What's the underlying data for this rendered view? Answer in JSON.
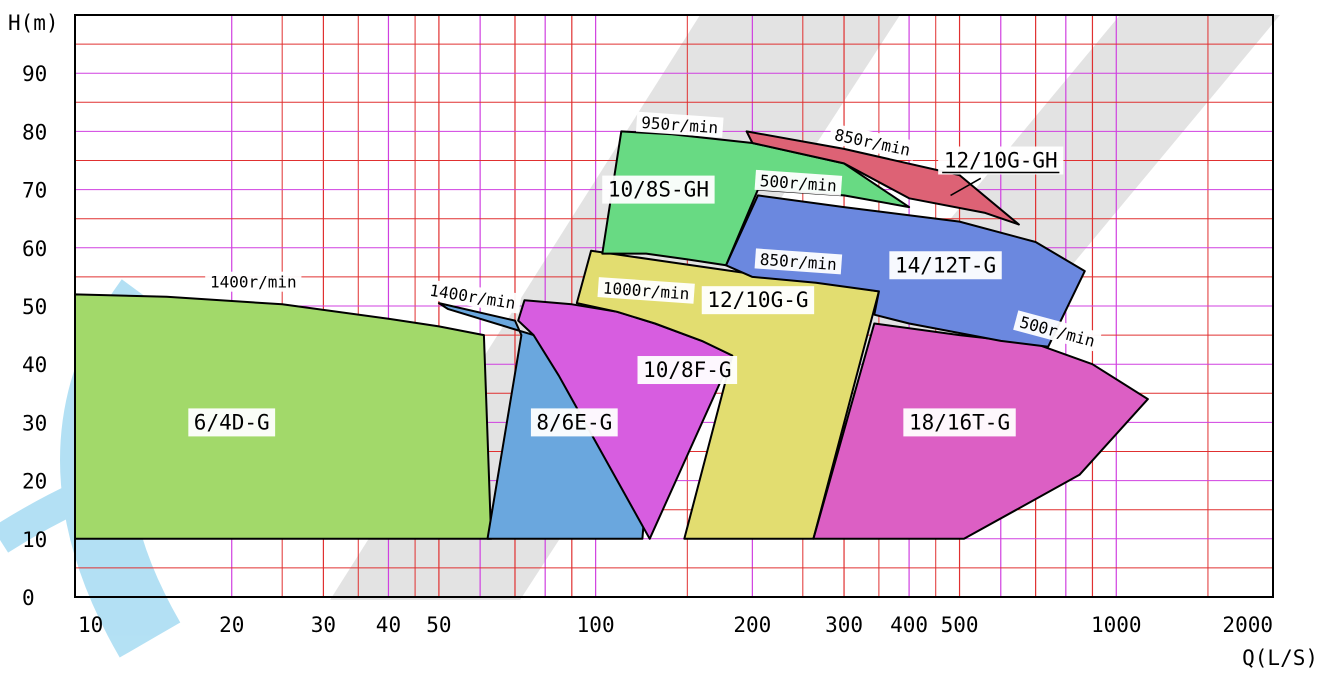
{
  "chart_data": {
    "type": "area",
    "xlabel": "Q(L/S)",
    "ylabel": "H(m)",
    "x_scale": "log",
    "xlim": [
      10,
      2000
    ],
    "ylim": [
      0,
      100
    ],
    "x_tick_labels": [
      "10",
      "20",
      "30",
      "40",
      "50",
      "100",
      "200",
      "300",
      "400",
      "500",
      "1000",
      "2000"
    ],
    "x_tick_values": [
      10,
      20,
      30,
      40,
      50,
      100,
      200,
      300,
      400,
      500,
      1000,
      2000
    ],
    "y_tick_labels": [
      "0",
      "10",
      "20",
      "30",
      "40",
      "50",
      "60",
      "70",
      "80",
      "90"
    ],
    "y_tick_values": [
      0,
      10,
      20,
      30,
      40,
      50,
      60,
      70,
      80,
      90
    ],
    "grid": true,
    "colors": {
      "grid_major": "#e03030",
      "grid_minor": "#d040e0",
      "watermark": "#b0b0b0",
      "watermark_accent": "#29a9e0"
    },
    "series": [
      {
        "name": "6/4D-G",
        "color": "#a2d96a",
        "points": [
          [
            10,
            52
          ],
          [
            15,
            51.6
          ],
          [
            25,
            50.3
          ],
          [
            40,
            47.8
          ],
          [
            50,
            46.5
          ],
          [
            61,
            45
          ],
          [
            63,
            10
          ],
          [
            10,
            10
          ]
        ]
      },
      {
        "name": "8/6E-G",
        "color": "#6aa7de",
        "points": [
          [
            50,
            50.5
          ],
          [
            52,
            49.5
          ],
          [
            76,
            45
          ],
          [
            85,
            42
          ],
          [
            100,
            38
          ],
          [
            120,
            32.5
          ],
          [
            128,
            30
          ],
          [
            123,
            10
          ],
          [
            62,
            10
          ],
          [
            72,
            45
          ],
          [
            70,
            47.5
          ]
        ]
      },
      {
        "name": "10/8F-G",
        "color": "#d75de0",
        "points": [
          [
            73,
            51
          ],
          [
            90,
            50.3
          ],
          [
            110,
            49
          ],
          [
            130,
            47
          ],
          [
            160,
            44
          ],
          [
            183,
            41.5
          ],
          [
            127,
            10
          ],
          [
            85,
            38
          ],
          [
            76,
            45
          ],
          [
            71,
            47.5
          ]
        ]
      },
      {
        "name": "12/10G-G",
        "color": "#e2dd70",
        "points": [
          [
            98,
            59.5
          ],
          [
            140,
            57.5
          ],
          [
            200,
            55.5
          ],
          [
            300,
            53.5
          ],
          [
            350,
            52.5
          ],
          [
            262,
            10
          ],
          [
            148,
            10
          ],
          [
            183,
            41.5
          ],
          [
            160,
            44
          ],
          [
            130,
            47
          ],
          [
            110,
            49
          ],
          [
            92,
            50.5
          ]
        ]
      },
      {
        "name": "18/16T-G",
        "color": "#dc5fc4",
        "points": [
          [
            343,
            47
          ],
          [
            500,
            45
          ],
          [
            700,
            43.5
          ],
          [
            900,
            40
          ],
          [
            1150,
            34
          ],
          [
            850,
            21
          ],
          [
            510,
            10
          ],
          [
            262,
            10
          ],
          [
            343,
            47
          ]
        ]
      },
      {
        "name": "14/12T-G",
        "color": "#6b88df",
        "points": [
          [
            205,
            69
          ],
          [
            300,
            67
          ],
          [
            500,
            64.5
          ],
          [
            700,
            61
          ],
          [
            870,
            56
          ],
          [
            740,
            43
          ],
          [
            600,
            44
          ],
          [
            400,
            47
          ],
          [
            343,
            48.5
          ],
          [
            350,
            52.5
          ],
          [
            265,
            54
          ],
          [
            200,
            55
          ],
          [
            178,
            57
          ]
        ]
      },
      {
        "name": "10/8S-GH",
        "color": "#68da83",
        "points": [
          [
            112,
            80
          ],
          [
            140,
            79.5
          ],
          [
            200,
            78
          ],
          [
            300,
            74.5
          ],
          [
            400,
            67
          ],
          [
            300,
            69
          ],
          [
            205,
            70
          ],
          [
            178,
            57
          ],
          [
            150,
            58
          ],
          [
            125,
            59
          ],
          [
            103,
            59
          ]
        ]
      },
      {
        "name": "12/10G-GH",
        "color": "#dd6275",
        "points": [
          [
            195,
            80
          ],
          [
            300,
            77
          ],
          [
            500,
            72.5
          ],
          [
            650,
            64
          ],
          [
            560,
            66
          ],
          [
            400,
            68.5
          ],
          [
            300,
            74.5
          ],
          [
            200,
            78
          ]
        ]
      }
    ],
    "zone_labels": [
      {
        "text": "6/4D-G",
        "x": 20,
        "y": 30
      },
      {
        "text": "8/6E-G",
        "x": 91,
        "y": 30
      },
      {
        "text": "10/8F-G",
        "x": 150,
        "y": 39
      },
      {
        "text": "12/10G-G",
        "x": 205,
        "y": 51
      },
      {
        "text": "18/16T-G",
        "x": 500,
        "y": 30
      },
      {
        "text": "14/12T-G",
        "x": 470,
        "y": 57
      },
      {
        "text": "10/8S-GH",
        "x": 132,
        "y": 70
      },
      {
        "text": "12/10G-GH",
        "x": 600,
        "y": 75
      }
    ],
    "speed_labels": [
      {
        "text": "1400r/min",
        "x": 22,
        "y": 54,
        "angle": 0
      },
      {
        "text": "1400r/min",
        "x": 58,
        "y": 51.5,
        "angle": 9
      },
      {
        "text": "1000r/min",
        "x": 125,
        "y": 52.5,
        "angle": 4
      },
      {
        "text": "950r/min",
        "x": 145,
        "y": 81,
        "angle": 4
      },
      {
        "text": "850r/min",
        "x": 340,
        "y": 78,
        "angle": 12
      },
      {
        "text": "500r/min",
        "x": 245,
        "y": 71,
        "angle": 4
      },
      {
        "text": "850r/min",
        "x": 245,
        "y": 57.5,
        "angle": 4
      },
      {
        "text": "500r/min",
        "x": 770,
        "y": 45.5,
        "angle": 15
      }
    ],
    "underlined_label": "12/10G-GH",
    "leader_line": {
      "from": [
        600,
        74
      ],
      "to": [
        470,
        69
      ]
    }
  }
}
